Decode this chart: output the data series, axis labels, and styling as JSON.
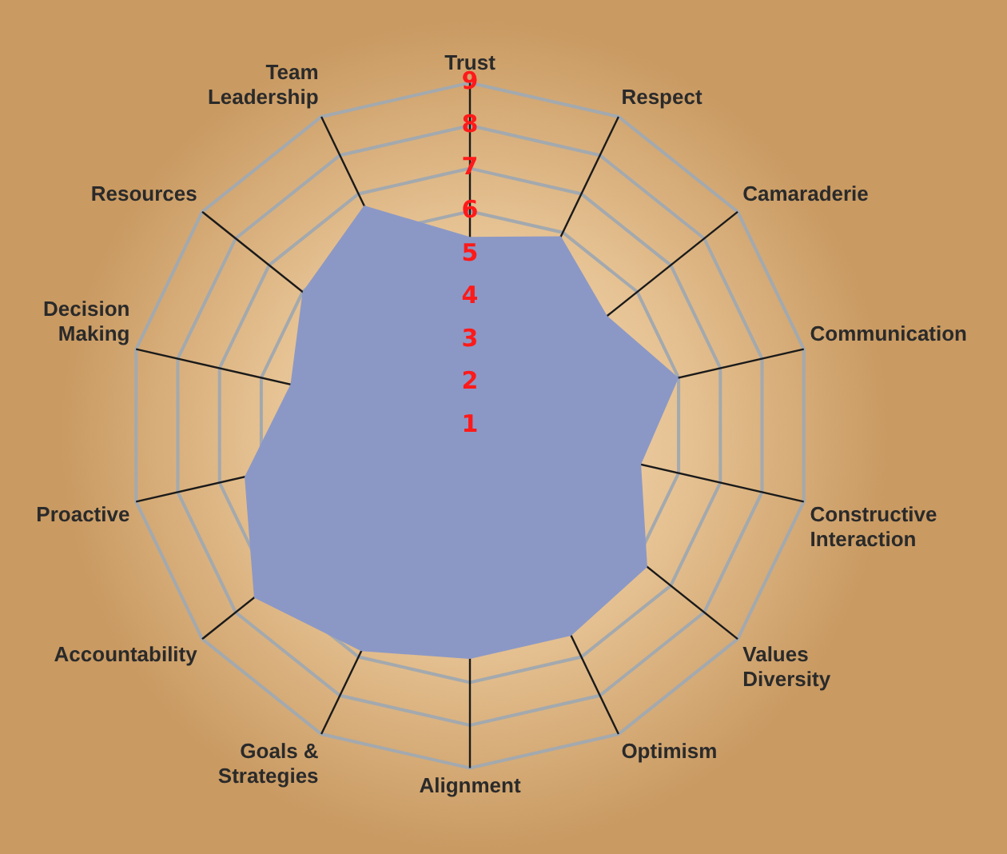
{
  "chart_data": {
    "type": "radar",
    "categories": [
      "Trust",
      "Respect",
      "Camaraderie",
      "Communication",
      "Constructive Interaction",
      "Values Diversity",
      "Optimism",
      "Alignment",
      "Goals & Strategies",
      "Accountability",
      "Proactive",
      "Decision Making",
      "Resources",
      "Team Leadership"
    ],
    "series": [
      {
        "color": "#8b98c6",
        "values": [
          5.4,
          5.9,
          5.1,
          6.0,
          5.1,
          6.3,
          6.45,
          6.45,
          6.85,
          7.45,
          6.4,
          5.3,
          6.0,
          6.7
        ]
      }
    ],
    "ylim": [
      1,
      9
    ],
    "yticks": [
      1,
      2,
      3,
      4,
      5,
      6,
      7,
      8,
      9
    ],
    "grid": true,
    "legend": false,
    "marker": "none"
  }
}
